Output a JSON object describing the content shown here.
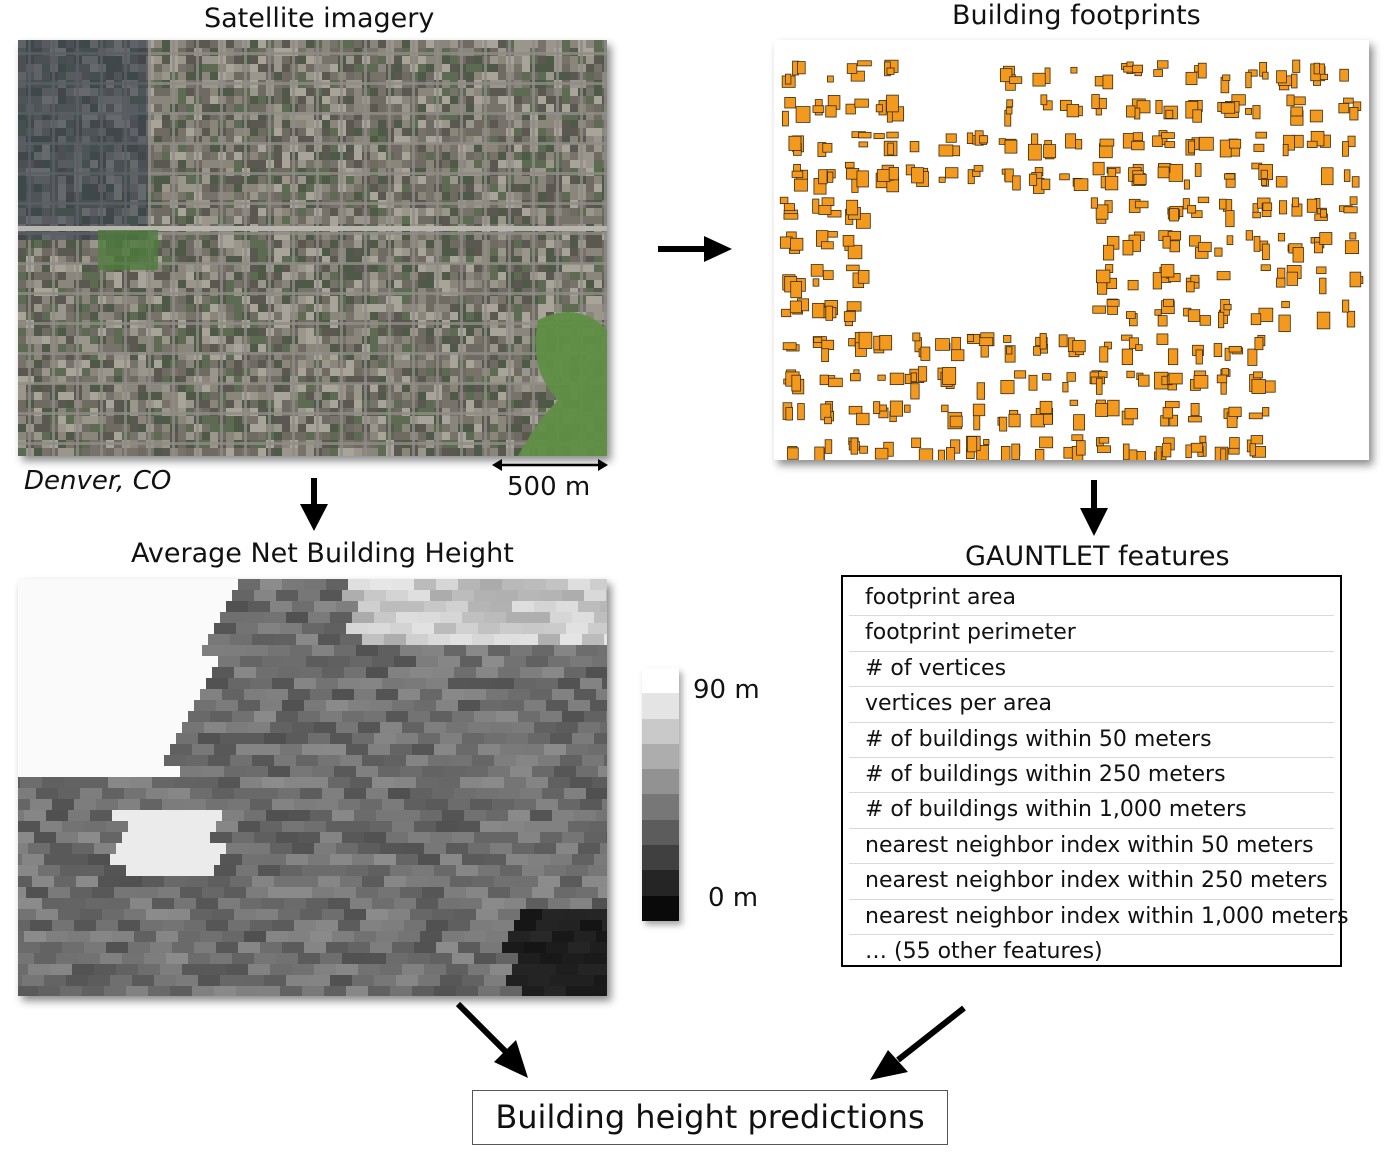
{
  "titles": {
    "satellite": "Satellite imagery",
    "footprints": "Building footprints",
    "height_map": "Average Net Building Height",
    "features": "GAUNTLET features"
  },
  "satellite": {
    "location": "Denver, CO",
    "scale_label": "500 m"
  },
  "colorbar": {
    "max_label": "90 m",
    "min_label": "0 m"
  },
  "features": [
    "footprint area",
    "footprint perimeter",
    "# of vertices",
    "vertices per area",
    "# of buildings within 50 meters",
    "# of buildings within 250 meters",
    "# of buildings within 1,000 meters",
    "nearest neighbor index within 50 meters",
    "nearest neighbor index within 250 meters",
    "nearest neighbor index within 1,000 meters",
    "… (55 other features)"
  ],
  "result": "Building height predictions",
  "colors": {
    "footprint_fill": "#f39a1e",
    "footprint_stroke": "#3a2a10",
    "arrow": "#000000",
    "park_green": "#5f8f45"
  }
}
